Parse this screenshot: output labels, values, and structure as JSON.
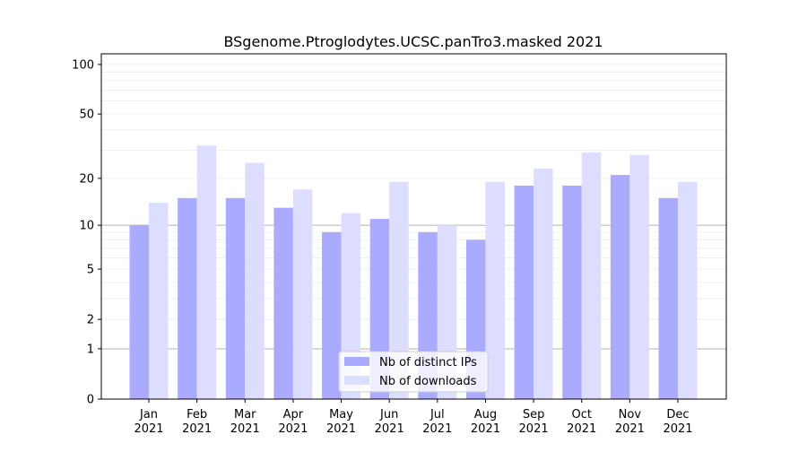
{
  "chart_data": {
    "type": "bar",
    "title": "BSgenome.Ptroglodytes.UCSC.panTro3.masked 2021",
    "xlabel": "",
    "ylabel": "",
    "y_scale": "log(1+y)",
    "ylim": [
      0,
      116
    ],
    "yticks": [
      0,
      1,
      2,
      5,
      10,
      20,
      50,
      100
    ],
    "grid": true,
    "legend_position": "bottom-center",
    "categories": [
      "Jan\n2021",
      "Feb\n2021",
      "Mar\n2021",
      "Apr\n2021",
      "May\n2021",
      "Jun\n2021",
      "Jul\n2021",
      "Aug\n2021",
      "Sep\n2021",
      "Oct\n2021",
      "Nov\n2021",
      "Dec\n2021"
    ],
    "series": [
      {
        "name": "Nb of distinct IPs",
        "color": "#aaaaff",
        "values": [
          10,
          15,
          15,
          13,
          9,
          11,
          9,
          8,
          18,
          18,
          21,
          15
        ]
      },
      {
        "name": "Nb of downloads",
        "color": "#ddddff",
        "values": [
          14,
          32,
          25,
          17,
          12,
          19,
          10,
          19,
          23,
          29,
          28,
          19
        ]
      }
    ]
  }
}
